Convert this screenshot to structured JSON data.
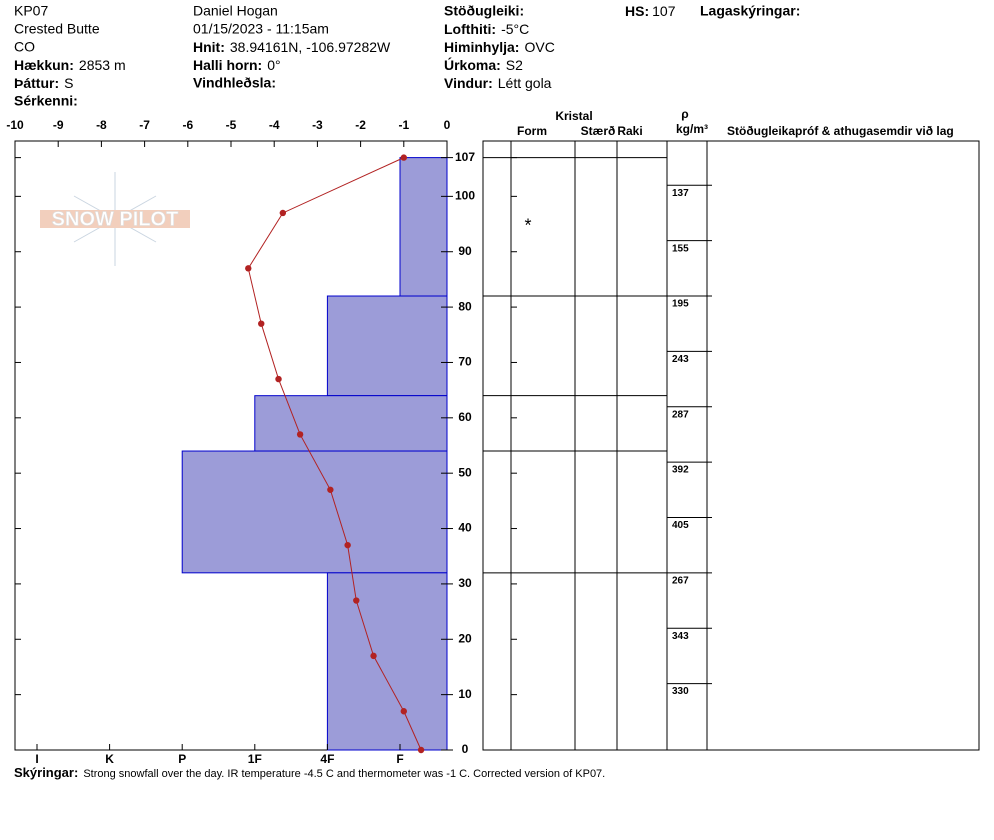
{
  "header": {
    "id": "KP07",
    "location": "Crested Butte",
    "state": "CO",
    "elevation": {
      "label": "Hækkun:",
      "value": "2853 m"
    },
    "aspect": {
      "label": "Þáttur:",
      "value": "S"
    },
    "features": {
      "label": "Sérkenni:"
    },
    "observer": "Daniel Hogan",
    "datetime": "01/15/2023 - 11:15am",
    "coords": {
      "label": "Hnit:",
      "value": "38.94161N, -106.97282W"
    },
    "slope": {
      "label": "Halli horn:",
      "value": "0°"
    },
    "wind_loading": {
      "label": "Vindhleðsla:"
    },
    "stability": {
      "label": "Stöðugleiki:"
    },
    "air_temp": {
      "label": "Lofthiti:",
      "value": "-5°C"
    },
    "sky": {
      "label": "Himinhylja:",
      "value": "OVC"
    },
    "precip": {
      "label": "Úrkoma:",
      "value": "S2"
    },
    "wind": {
      "label": "Vindur:",
      "value": "Létt gola"
    },
    "hs": {
      "label": "HS:",
      "value": 107
    },
    "layer_notes": {
      "label": "Lagaskýringar:"
    }
  },
  "logo": "SNOW PILOT",
  "chart_data": {
    "type": "snow_profile",
    "xlim": [
      -10,
      0
    ],
    "xticks": [
      -10,
      -9,
      -8,
      -7,
      -6,
      -5,
      -4,
      -3,
      -2,
      -1,
      0
    ],
    "ylim": [
      0,
      110
    ],
    "yticks": [
      0,
      10,
      20,
      30,
      40,
      50,
      60,
      70,
      80,
      90,
      100,
      107
    ],
    "hardness_ticks": [
      "I",
      "K",
      "P",
      "1F",
      "4F",
      "F"
    ],
    "layer_color": "#9c9cd8",
    "layer_edge": "#0000cc",
    "layers": [
      {
        "top": 107,
        "bottom": 82,
        "hardness": "F",
        "form": "*"
      },
      {
        "top": 82,
        "bottom": 64,
        "hardness": "4F"
      },
      {
        "top": 64,
        "bottom": 54,
        "hardness": "1F"
      },
      {
        "top": 54,
        "bottom": 32,
        "hardness": "P"
      },
      {
        "top": 32,
        "bottom": 0,
        "hardness": "4F"
      }
    ],
    "temperature": {
      "color": "#b22222",
      "heights": [
        107,
        97,
        87,
        77,
        67,
        57,
        47,
        37,
        27,
        17,
        7,
        0
      ],
      "values": [
        -1.0,
        -3.8,
        -4.6,
        -4.3,
        -3.9,
        -3.4,
        -2.7,
        -2.3,
        -2.1,
        -1.7,
        -1.0,
        -0.6
      ]
    },
    "density": {
      "heights": [
        102,
        92,
        82,
        72,
        62,
        52,
        42,
        32,
        22,
        12
      ],
      "values": [
        137,
        155,
        195,
        243,
        287,
        392,
        405,
        267,
        343,
        330
      ]
    },
    "columns": {
      "crystal": "Kristal",
      "form": "Form",
      "size": "Stærð",
      "moisture": "Raki",
      "rho": "ρ",
      "density_unit": "kg/m³",
      "tests": "Stöðugleikapróf & athugasemdir við lag"
    }
  },
  "footer": {
    "label": "Skýringar:",
    "text": "Strong snowfall over the day. IR temperature -4.5 C and thermometer was -1 C. Corrected version of KP07."
  }
}
